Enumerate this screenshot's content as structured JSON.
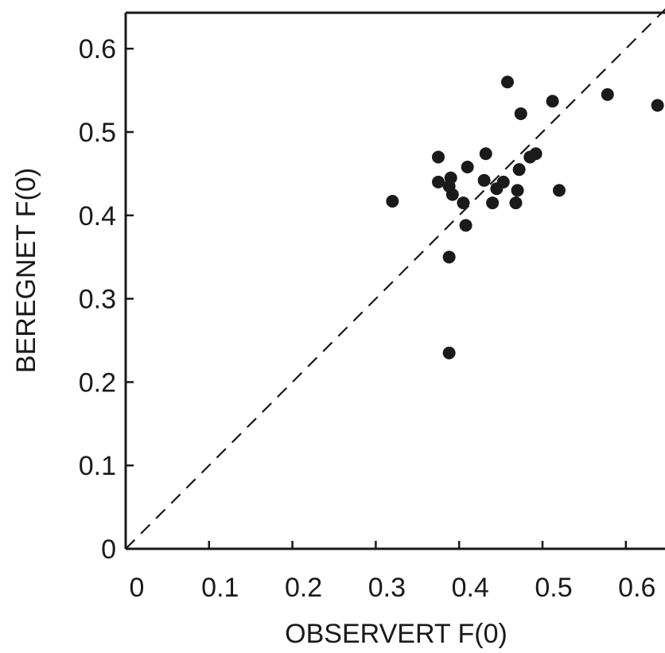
{
  "chart_data": {
    "type": "scatter",
    "title": "",
    "xlabel": "OBSERVERT F(0)",
    "ylabel": "BEREGNET F(0)",
    "xlim": [
      0,
      0.65
    ],
    "ylim": [
      0,
      0.65
    ],
    "x_ticks": [
      "0",
      "0.1",
      "0.2",
      "0.3",
      "0.4",
      "0.5",
      "0.6"
    ],
    "y_ticks": [
      "0",
      "0.1",
      "0.2",
      "0.3",
      "0.4",
      "0.5",
      "0.6"
    ],
    "x_tick_values": [
      0,
      0.1,
      0.2,
      0.3,
      0.4,
      0.5,
      0.6
    ],
    "y_tick_values": [
      0,
      0.1,
      0.2,
      0.3,
      0.4,
      0.5,
      0.6
    ],
    "reference_line": {
      "style": "dashed",
      "from": [
        0,
        0
      ],
      "to": [
        0.65,
        0.65
      ]
    },
    "grid": false,
    "marker_color": "#1a1a1a",
    "series": [
      {
        "points": [
          [
            0.32,
            0.417
          ],
          [
            0.375,
            0.47
          ],
          [
            0.375,
            0.44
          ],
          [
            0.388,
            0.435
          ],
          [
            0.39,
            0.445
          ],
          [
            0.392,
            0.425
          ],
          [
            0.388,
            0.35
          ],
          [
            0.388,
            0.235
          ],
          [
            0.405,
            0.415
          ],
          [
            0.408,
            0.388
          ],
          [
            0.41,
            0.458
          ],
          [
            0.43,
            0.442
          ],
          [
            0.432,
            0.474
          ],
          [
            0.44,
            0.415
          ],
          [
            0.445,
            0.432
          ],
          [
            0.453,
            0.44
          ],
          [
            0.458,
            0.56
          ],
          [
            0.468,
            0.415
          ],
          [
            0.47,
            0.43
          ],
          [
            0.472,
            0.455
          ],
          [
            0.474,
            0.522
          ],
          [
            0.485,
            0.47
          ],
          [
            0.492,
            0.474
          ],
          [
            0.512,
            0.537
          ],
          [
            0.52,
            0.43
          ],
          [
            0.578,
            0.545
          ],
          [
            0.638,
            0.532
          ]
        ]
      }
    ]
  }
}
